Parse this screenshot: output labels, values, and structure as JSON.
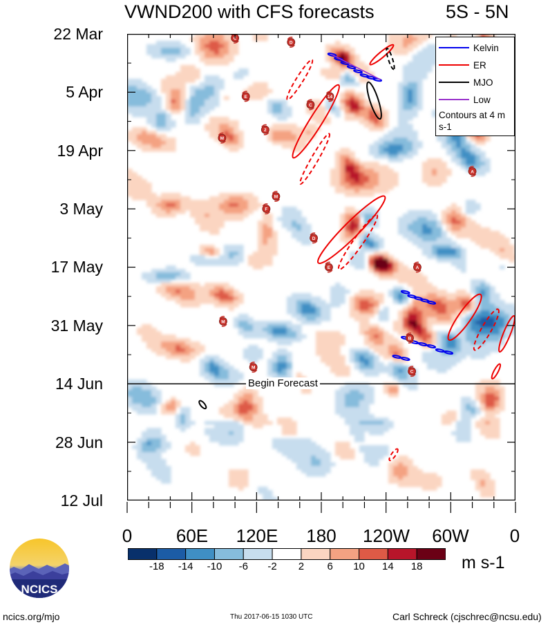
{
  "chart_data": {
    "type": "heatmap",
    "title": "VWND200 with CFS forecasts",
    "region": "5S - 5N",
    "x_ticks": [
      "0",
      "60E",
      "120E",
      "180",
      "120W",
      "60W",
      "0"
    ],
    "x_tick_values": [
      0,
      60,
      120,
      180,
      240,
      300,
      360
    ],
    "xlim": [
      0,
      360
    ],
    "y_ticks": [
      "22 Mar",
      "5 Apr",
      "19 Apr",
      "3 May",
      "17 May",
      "31 May",
      "14 Jun",
      "28 Jun",
      "12 Jul"
    ],
    "forecast_start": "14 Jun",
    "forecast_label": "Begin Forecast",
    "units": "m s-1",
    "colorbar_labels": [
      "-18",
      "-14",
      "-10",
      "-6",
      "-2",
      "2",
      "6",
      "10",
      "14",
      "18"
    ],
    "colorbar_colors": [
      "#08306b",
      "#1c5ca5",
      "#3f8fc4",
      "#86bcdc",
      "#c7ddee",
      "#ffffff",
      "#fbd5c1",
      "#f4a282",
      "#de5a46",
      "#b8152a",
      "#6b0015"
    ],
    "legend": [
      {
        "name": "Kelvin",
        "color": "#0000ee"
      },
      {
        "name": "ER",
        "color": "#ee0000"
      },
      {
        "name": "MJO",
        "color": "#000000"
      },
      {
        "name": "Low",
        "color": "#9933cc"
      }
    ],
    "legend_note": "Contours at 4 m s-1",
    "storm_markers": [
      {
        "label": "C",
        "lon": 100,
        "day": 1
      },
      {
        "label": "D",
        "lon": 152,
        "day": 2
      },
      {
        "label": "E",
        "lon": 110,
        "day": 15
      },
      {
        "label": "C",
        "lon": 170,
        "day": 17
      },
      {
        "label": "14",
        "lon": 188,
        "day": 15
      },
      {
        "label": "M",
        "lon": 88,
        "day": 25
      },
      {
        "label": "2",
        "lon": 128,
        "day": 23
      },
      {
        "label": "A",
        "lon": 320,
        "day": 33
      },
      {
        "label": "M",
        "lon": 138,
        "day": 39
      },
      {
        "label": "F",
        "lon": 129,
        "day": 42
      },
      {
        "label": "D",
        "lon": 173,
        "day": 49
      },
      {
        "label": "E",
        "lon": 187,
        "day": 56
      },
      {
        "label": "A",
        "lon": 269,
        "day": 56
      },
      {
        "label": "M",
        "lon": 89,
        "day": 69
      },
      {
        "label": "B",
        "lon": 262,
        "day": 73
      },
      {
        "label": "M",
        "lon": 117,
        "day": 80
      },
      {
        "label": "C",
        "lon": 264,
        "day": 81
      }
    ]
  },
  "footer": {
    "left": "ncics.org/mjo",
    "middle": "Thu 2017-06-15 1030 UTC",
    "right": "Carl Schreck (cjschrec@ncsu.edu)",
    "logo_text": "NCICS"
  }
}
